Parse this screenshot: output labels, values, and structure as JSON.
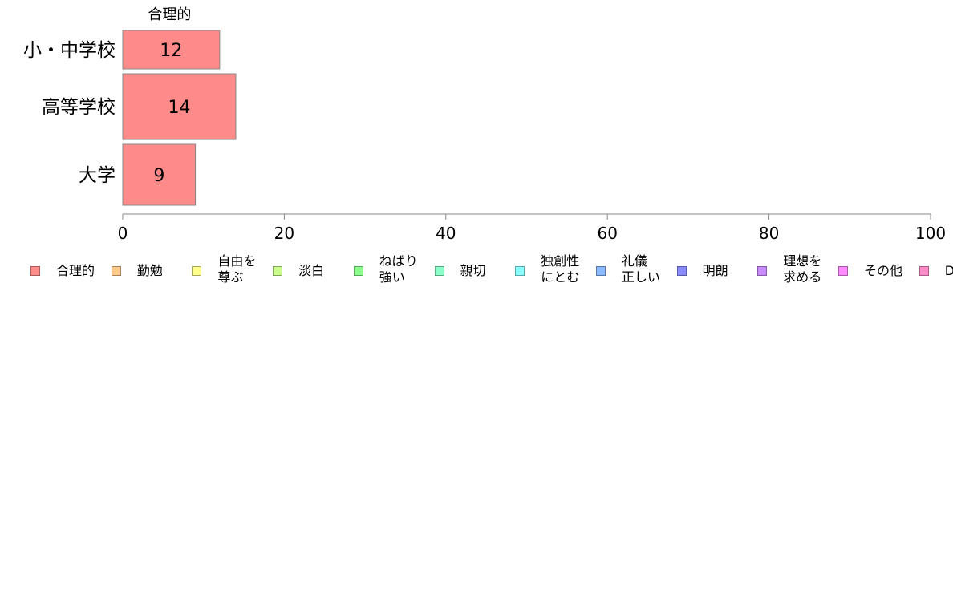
{
  "chart_data": {
    "type": "bar",
    "orientation": "horizontal",
    "stacked": true,
    "title": "",
    "xlabel": "",
    "ylabel": "",
    "categories": [
      "小・中学校",
      "高等学校",
      "大学"
    ],
    "xlim": [
      0,
      100
    ],
    "xticks": [
      0,
      20,
      40,
      60,
      80,
      100
    ],
    "grid": false,
    "legend_position": "bottom",
    "series": [
      {
        "name": "合理的",
        "values": [
          12,
          14,
          9
        ],
        "data_labels": [
          "12",
          "14",
          "9"
        ],
        "color": "#FF8A8A",
        "segment_label": "合理的"
      }
    ],
    "legend": [
      {
        "name": "合理的",
        "color": "#FF8A8A"
      },
      {
        "name": "勤勉",
        "color": "#FFC98A"
      },
      {
        "name": "自由を\n尊ぶ",
        "color": "#FFFF8A"
      },
      {
        "name": "淡白",
        "color": "#C9FF8A"
      },
      {
        "name": "ねばり\n強い",
        "color": "#8AFF8A"
      },
      {
        "name": "親切",
        "color": "#8AFFC9"
      },
      {
        "name": "独創性\nにとむ",
        "color": "#8AFFFF"
      },
      {
        "name": "礼儀\n正しい",
        "color": "#8AB9FF"
      },
      {
        "name": "明朗",
        "color": "#8A8AFF"
      },
      {
        "name": "理想を\n求める",
        "color": "#C98AFF"
      },
      {
        "name": "その他",
        "color": "#FF8AFF"
      },
      {
        "name": "D",
        "color": "#FF8AC9"
      }
    ]
  }
}
